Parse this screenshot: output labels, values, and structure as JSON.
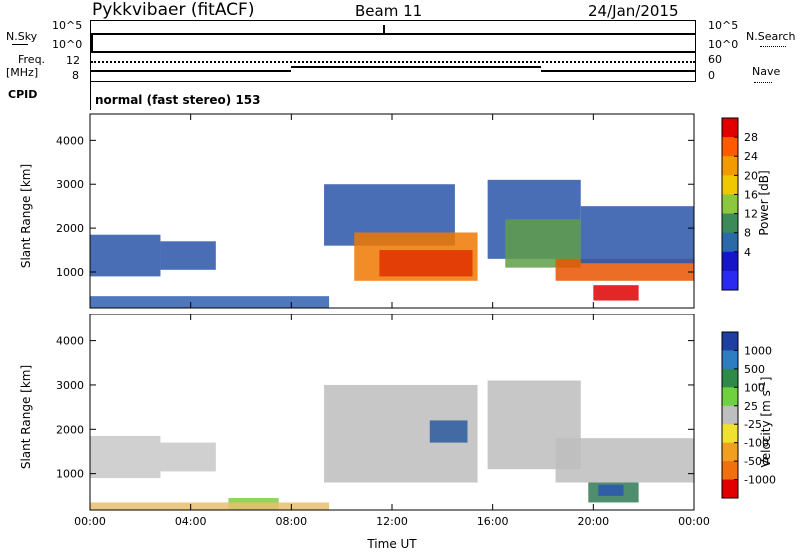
{
  "header": {
    "station": "Pykkvibaer (fitACF)",
    "beam": "Beam 11",
    "date": "24/Jan/2015"
  },
  "noise_panel": {
    "left_label": "N.Sky",
    "left_ticks": [
      "10^5",
      "10^0"
    ],
    "right_label": "N.Search",
    "right_ticks": [
      "10^5",
      "10^0"
    ]
  },
  "freq_panel": {
    "left_label_line1": "Freq.",
    "left_label_line2": "[MHz]",
    "left_ticks": [
      "12",
      "8"
    ],
    "right_label": "Nave",
    "right_ticks": [
      "60",
      "0"
    ]
  },
  "cpid_panel": {
    "label": "CPID",
    "mode_text": "normal (fast stereo) 153"
  },
  "chart_data": [
    {
      "type": "heatmap",
      "name": "power",
      "ylabel": "Slant Range [km]",
      "xlabel": "",
      "x_ticks": [
        "00:00",
        "04:00",
        "08:00",
        "12:00",
        "16:00",
        "20:00",
        "00:00"
      ],
      "y_ticks": [
        1000,
        2000,
        3000,
        4000
      ],
      "ylim": [
        180,
        4600
      ],
      "xlim_hours": [
        0,
        24
      ],
      "colorbar": {
        "label": "Power [dB]",
        "ticks": [
          "28",
          "24",
          "20",
          "16",
          "12",
          "8",
          "4"
        ],
        "colors": [
          "#e10000",
          "#ff5a00",
          "#f39a00",
          "#f0c800",
          "#8dc63f",
          "#3c8a5a",
          "#2a6aa8",
          "#1616c8",
          "#2a2af0"
        ]
      },
      "regions": [
        {
          "t0": 0.0,
          "t1": 2.8,
          "r0": 900,
          "r1": 1850,
          "color": "#2a55a8"
        },
        {
          "t0": 2.8,
          "t1": 5.0,
          "r0": 1050,
          "r1": 1700,
          "color": "#2a55a8"
        },
        {
          "t0": 9.3,
          "t1": 14.5,
          "r0": 1600,
          "r1": 3000,
          "color": "#2a55a8"
        },
        {
          "t0": 10.5,
          "t1": 15.4,
          "r0": 800,
          "r1": 1900,
          "color": "#f07800"
        },
        {
          "t0": 11.5,
          "t1": 15.2,
          "r0": 900,
          "r1": 1500,
          "color": "#e03000"
        },
        {
          "t0": 15.8,
          "t1": 19.5,
          "r0": 1300,
          "r1": 3100,
          "color": "#2a55a8"
        },
        {
          "t0": 16.5,
          "t1": 19.5,
          "r0": 1100,
          "r1": 2200,
          "color": "#5f9e48"
        },
        {
          "t0": 18.5,
          "t1": 24.0,
          "r0": 800,
          "r1": 1300,
          "color": "#e85400"
        },
        {
          "t0": 20.0,
          "t1": 21.8,
          "r0": 350,
          "r1": 700,
          "color": "#e00000"
        },
        {
          "t0": 19.5,
          "t1": 24.0,
          "r0": 1200,
          "r1": 2500,
          "color": "#2a55a8"
        },
        {
          "t0": 0.0,
          "t1": 9.5,
          "r0": 180,
          "r1": 450,
          "color": "#3060b0"
        }
      ]
    },
    {
      "type": "heatmap",
      "name": "velocity",
      "ylabel": "Slant Range [km]",
      "xlabel": "Time UT",
      "x_ticks": [
        "00:00",
        "04:00",
        "08:00",
        "12:00",
        "16:00",
        "20:00",
        "00:00"
      ],
      "y_ticks": [
        1000,
        2000,
        3000,
        4000
      ],
      "ylim": [
        180,
        4600
      ],
      "xlim_hours": [
        0,
        24
      ],
      "colorbar": {
        "label": "Velocity [m s",
        "label_sup": "-1",
        "label_end": "]",
        "ticks": [
          "1000",
          "500",
          "100",
          "25",
          "-25",
          "-100",
          "-500",
          "-1000"
        ],
        "colors": [
          "#1d3fa0",
          "#2e7dc0",
          "#2f8a4a",
          "#6fd040",
          "#bebebe",
          "#f0e030",
          "#f0a020",
          "#f07010",
          "#e00000"
        ]
      },
      "regions": [
        {
          "t0": 0.0,
          "t1": 2.8,
          "r0": 900,
          "r1": 1850,
          "color": "#c8c8c8"
        },
        {
          "t0": 2.8,
          "t1": 5.0,
          "r0": 1050,
          "r1": 1700,
          "color": "#c8c8c8"
        },
        {
          "t0": 9.3,
          "t1": 15.4,
          "r0": 800,
          "r1": 3000,
          "color": "#bdbdbd"
        },
        {
          "t0": 13.5,
          "t1": 15.0,
          "r0": 1700,
          "r1": 2200,
          "color": "#2a5aa0"
        },
        {
          "t0": 15.8,
          "t1": 19.5,
          "r0": 1100,
          "r1": 3100,
          "color": "#bdbdbd"
        },
        {
          "t0": 18.5,
          "t1": 24.0,
          "r0": 800,
          "r1": 1800,
          "color": "#bdbdbd"
        },
        {
          "t0": 19.8,
          "t1": 21.8,
          "r0": 350,
          "r1": 800,
          "color": "#2f7a55"
        },
        {
          "t0": 20.2,
          "t1": 21.2,
          "r0": 500,
          "r1": 750,
          "color": "#2a55b0"
        },
        {
          "t0": 5.5,
          "t1": 7.5,
          "r0": 180,
          "r1": 450,
          "color": "#7ad040"
        },
        {
          "t0": 0.0,
          "t1": 9.5,
          "r0": 180,
          "r1": 350,
          "color": "#e8c070"
        }
      ]
    }
  ]
}
